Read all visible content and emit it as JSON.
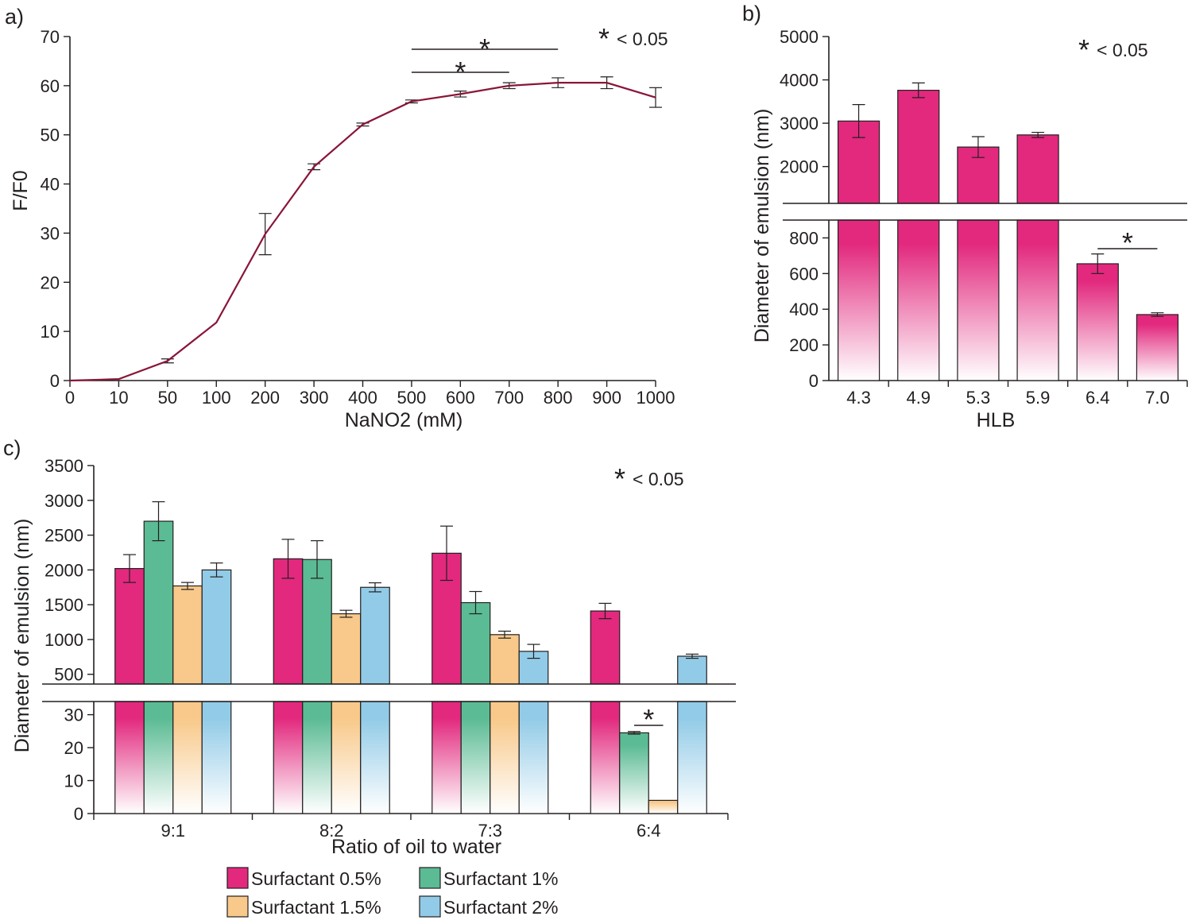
{
  "colors": {
    "series": [
      "#e2297e",
      "#5bbb94",
      "#f8c98a",
      "#92cbe7"
    ],
    "line": "#8a1538",
    "axis": "#231f20"
  },
  "chart_data": [
    {
      "panel": "a)",
      "type": "line",
      "xlabel": "NaNO2 (mM)",
      "ylabel": "F/F0",
      "categories": [
        "0",
        "10",
        "50",
        "100",
        "200",
        "300",
        "400",
        "500",
        "600",
        "700",
        "800",
        "900",
        "1000"
      ],
      "values": [
        0,
        0.3,
        4,
        11.8,
        29.8,
        43.5,
        52.1,
        56.8,
        58.3,
        60.0,
        60.6,
        60.6,
        57.6
      ],
      "errors": [
        0,
        0,
        0.4,
        0,
        4.2,
        0.6,
        0.3,
        0.3,
        0.6,
        0.6,
        1.0,
        1.2,
        2.0
      ],
      "ylim": [
        0,
        70
      ],
      "yticks": [
        "0",
        "10",
        "20",
        "30",
        "40",
        "50",
        "60",
        "70"
      ],
      "significance": {
        "star": "*",
        "text": "< 0.05",
        "brackets": [
          [
            7,
            9
          ],
          [
            7,
            10
          ]
        ]
      }
    },
    {
      "panel": "b)",
      "type": "bar",
      "xlabel": "HLB",
      "ylabel": "Diameter of emulsion (nm)",
      "categories": [
        "4.3",
        "4.9",
        "5.3",
        "5.9",
        "6.4",
        "7.0"
      ],
      "values": [
        3050,
        3760,
        2450,
        2730,
        655,
        370
      ],
      "errors": [
        380,
        170,
        240,
        60,
        55,
        10
      ],
      "lower_ylim": [
        0,
        900
      ],
      "upper_ylim": [
        1150,
        5000
      ],
      "lower_yticks": [
        "0",
        "200",
        "400",
        "600",
        "800"
      ],
      "upper_yticks": [
        "2000",
        "3000",
        "4000",
        "5000"
      ],
      "significance": {
        "star": "*",
        "text": "< 0.05",
        "brackets": [
          [
            4,
            5
          ]
        ]
      }
    },
    {
      "panel": "c)",
      "type": "bar",
      "xlabel": "Ratio of oil to water",
      "ylabel": "Diameter of emulsion (nm)",
      "categories": [
        "9:1",
        "8:2",
        "7:3",
        "6:4"
      ],
      "series": [
        {
          "name": "Surfactant 0.5%",
          "values": [
            2020,
            2160,
            2240,
            1410
          ],
          "errors": [
            200,
            280,
            390,
            110
          ]
        },
        {
          "name": "Surfactant 1%",
          "values": [
            2700,
            2150,
            1530,
            24.5
          ],
          "errors": [
            280,
            270,
            160,
            0.4
          ]
        },
        {
          "name": "Surfactant 1.5%",
          "values": [
            1770,
            1370,
            1070,
            4
          ],
          "errors": [
            50,
            50,
            50,
            0
          ]
        },
        {
          "name": "Surfactant 2%",
          "values": [
            2000,
            1750,
            830,
            760
          ],
          "errors": [
            100,
            65,
            100,
            30
          ]
        }
      ],
      "lower_ylim": [
        0,
        34
      ],
      "upper_ylim": [
        360,
        3500
      ],
      "lower_yticks": [
        "0",
        "10",
        "20",
        "30"
      ],
      "upper_yticks": [
        "500",
        "1000",
        "1500",
        "2000",
        "2500",
        "3000",
        "3500"
      ],
      "significance": {
        "star": "*",
        "text": "< 0.05",
        "brackets": [
          [
            3,
            1,
            3,
            2
          ]
        ]
      }
    }
  ]
}
